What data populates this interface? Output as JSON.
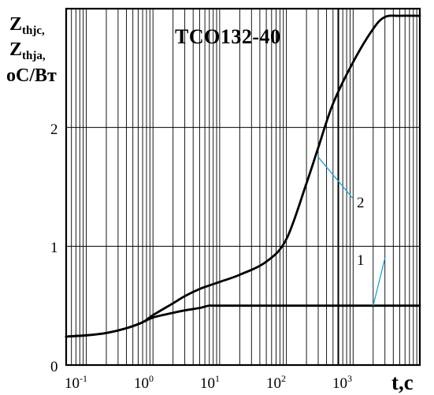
{
  "chart_data": {
    "type": "line",
    "title": "TCO132-40",
    "ylabel_lines": [
      "Z",
      "Z",
      "oC/Вт"
    ],
    "ylabel_subs": [
      "thjc,",
      "thja,"
    ],
    "xlabel": "t,c",
    "x_scale": "log",
    "xlim": [
      0.05,
      10000
    ],
    "ylim": [
      0,
      3
    ],
    "x_ticks": [
      {
        "base": "10",
        "exp": "-1",
        "value": 0.1
      },
      {
        "base": "10",
        "exp": "0",
        "value": 1
      },
      {
        "base": "10",
        "exp": "1",
        "value": 10
      },
      {
        "base": "10",
        "exp": "2",
        "value": 100
      },
      {
        "base": "10",
        "exp": "3",
        "value": 1000
      }
    ],
    "y_ticks": [
      {
        "label": "0",
        "value": 0
      },
      {
        "label": "1",
        "value": 1
      },
      {
        "label": "2",
        "value": 2
      }
    ],
    "grid": true,
    "series": [
      {
        "label": "1",
        "x": [
          0.05,
          0.1,
          0.2,
          0.4,
          0.7,
          1,
          2,
          3,
          5,
          7,
          10,
          100,
          1000,
          10000
        ],
        "y": [
          0.24,
          0.25,
          0.27,
          0.31,
          0.36,
          0.4,
          0.44,
          0.46,
          0.48,
          0.5,
          0.5,
          0.5,
          0.5,
          0.5
        ]
      },
      {
        "label": "2",
        "x": [
          0.05,
          0.1,
          0.2,
          0.4,
          0.7,
          1,
          2,
          3,
          5,
          7,
          10,
          20,
          50,
          100,
          200,
          300,
          500,
          1000,
          2000,
          3000,
          5000,
          10000
        ],
        "y": [
          0.24,
          0.25,
          0.27,
          0.31,
          0.36,
          0.42,
          0.52,
          0.58,
          0.64,
          0.67,
          0.7,
          0.76,
          0.87,
          1.06,
          1.53,
          1.83,
          2.2,
          2.55,
          2.83,
          2.93,
          2.94,
          2.94
        ]
      }
    ],
    "annotations": [
      {
        "text": "1",
        "at": [
          2000,
          0.5
        ],
        "label_at": [
          3000,
          0.9
        ]
      },
      {
        "text": "2",
        "at": [
          300,
          1.75
        ],
        "label_at": [
          1000,
          1.4
        ]
      }
    ]
  }
}
